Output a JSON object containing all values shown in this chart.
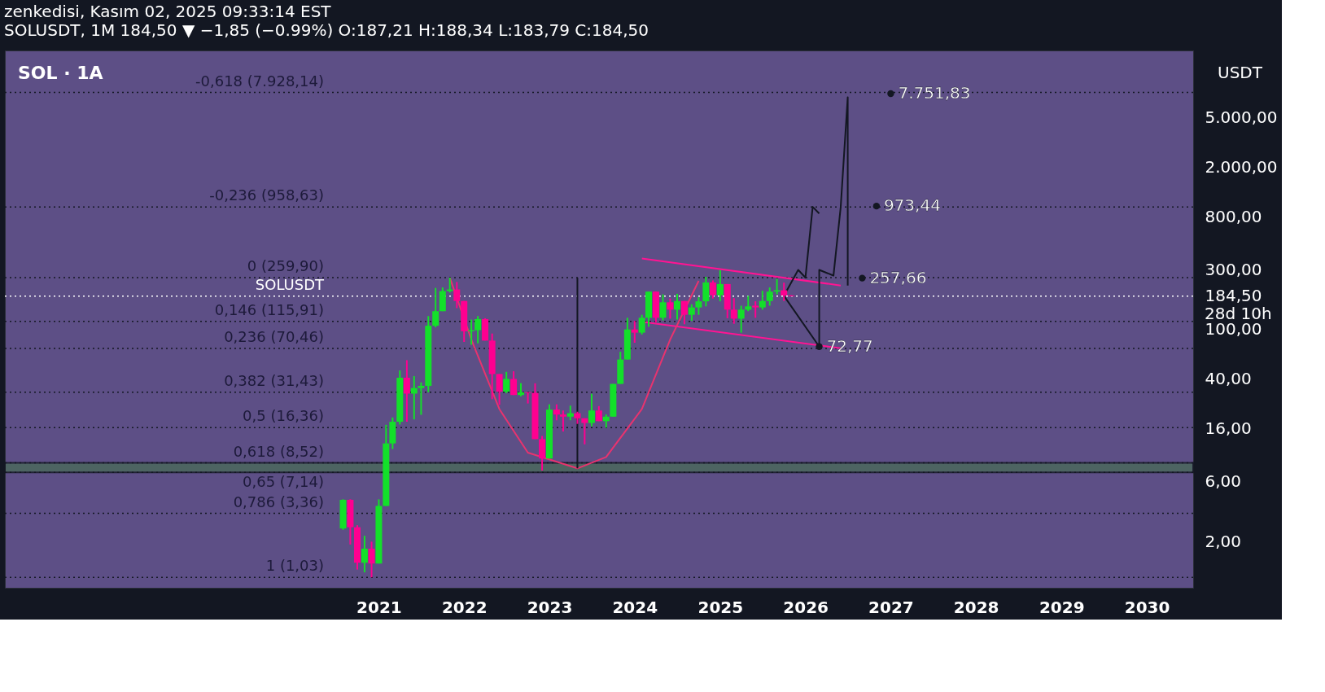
{
  "chart_data": {
    "type": "candlestick",
    "title": "zenkedisi, Kasım 02, 2025 09:33:14 EST",
    "subtitle": "SOLUSDT, 1M  184,50 ▼ −1,85 (−0.99%)  O:187,21  H:188,34  L:183,79  C:184,50",
    "x": [
      "2020-08",
      "2020-09",
      "2020-10",
      "2020-11",
      "2020-12",
      "2021-01",
      "2021-02",
      "2021-03",
      "2021-04",
      "2021-05",
      "2021-06",
      "2021-07",
      "2021-08",
      "2021-09",
      "2021-10",
      "2021-11",
      "2021-12",
      "2022-01",
      "2022-02",
      "2022-03",
      "2022-04",
      "2022-05",
      "2022-06",
      "2022-07",
      "2022-08",
      "2022-09",
      "2022-10",
      "2022-11",
      "2022-12",
      "2023-01",
      "2023-02",
      "2023-03",
      "2023-04",
      "2023-05",
      "2023-06",
      "2023-07",
      "2023-08",
      "2023-09",
      "2023-10",
      "2023-11",
      "2023-12",
      "2024-01",
      "2024-02",
      "2024-03",
      "2024-04",
      "2024-05",
      "2024-06",
      "2024-07",
      "2024-08",
      "2024-09",
      "2024-10",
      "2024-11",
      "2024-12",
      "2025-01",
      "2025-02",
      "2025-03",
      "2025-04",
      "2025-05",
      "2025-06",
      "2025-07",
      "2025-08",
      "2025-09",
      "2025-10",
      "2025-11"
    ],
    "ohlc": [
      [
        2.54,
        4.35,
        2.48,
        4.31
      ],
      [
        4.31,
        4.35,
        1.89,
        2.6
      ],
      [
        2.6,
        2.7,
        1.19,
        1.35
      ],
      [
        1.35,
        2.22,
        1.13,
        1.75
      ],
      [
        1.75,
        1.99,
        1.03,
        1.33
      ],
      [
        1.33,
        4.35,
        1.33,
        3.85
      ],
      [
        3.85,
        17.2,
        3.85,
        12.2
      ],
      [
        12.2,
        19.7,
        11.0,
        18.2
      ],
      [
        18.2,
        46.9,
        17.3,
        41.0
      ],
      [
        41.0,
        56.7,
        18.2,
        30.6
      ],
      [
        30.6,
        42.3,
        19.0,
        33.9
      ],
      [
        33.9,
        37.6,
        20.7,
        35.3
      ],
      [
        35.3,
        128,
        31.4,
        107
      ],
      [
        107,
        215,
        104,
        140
      ],
      [
        140,
        217,
        140,
        203
      ],
      [
        203,
        259.9,
        198,
        209
      ],
      [
        209,
        240,
        148,
        169
      ],
      [
        169,
        169,
        79.4,
        96.6
      ],
      [
        96.6,
        120,
        75.4,
        98.6
      ],
      [
        98.6,
        128,
        77.4,
        121
      ],
      [
        121,
        123,
        81.4,
        81.4
      ],
      [
        81.4,
        92.7,
        27.6,
        43.9
      ],
      [
        43.9,
        43.9,
        24.9,
        31.7
      ],
      [
        31.7,
        45.7,
        30.9,
        40.1
      ],
      [
        40.1,
        46.2,
        29.8,
        29.8
      ],
      [
        29.8,
        37.1,
        29.1,
        31.4
      ],
      [
        31.4,
        31.4,
        25.5,
        31.0
      ],
      [
        31.0,
        37,
        13.2,
        13.2
      ],
      [
        13.2,
        14.0,
        7.4,
        9.24
      ],
      [
        9.24,
        25.1,
        9.24,
        22.8
      ],
      [
        22.8,
        25.1,
        18.7,
        20.8
      ],
      [
        20.8,
        22.4,
        15.2,
        20.0
      ],
      [
        20.0,
        24.5,
        18.7,
        21.3
      ],
      [
        21.3,
        21.9,
        17.5,
        19.4
      ],
      [
        19.4,
        19.4,
        12.0,
        17.8
      ],
      [
        17.8,
        30.5,
        16.7,
        22.4
      ],
      [
        22.4,
        24.3,
        18.4,
        18.4
      ],
      [
        18.4,
        20.8,
        16.3,
        20.0
      ],
      [
        20.0,
        36.6,
        20.0,
        36.6
      ],
      [
        36.6,
        66.2,
        36.6,
        57.4
      ],
      [
        57.4,
        124,
        57.4,
        100
      ],
      [
        100,
        117,
        78.2,
        94.2
      ],
      [
        94.2,
        131,
        91.2,
        124
      ],
      [
        124,
        201,
        105,
        201
      ],
      [
        201,
        201,
        114,
        124
      ],
      [
        124,
        191,
        118,
        165
      ],
      [
        165,
        177,
        122,
        144
      ],
      [
        144,
        193,
        120,
        169
      ],
      [
        169,
        169,
        110,
        131
      ],
      [
        131,
        159,
        117,
        150
      ],
      [
        150,
        181,
        131,
        168
      ],
      [
        168,
        264,
        153,
        238
      ],
      [
        238,
        247,
        177,
        188
      ],
      [
        188,
        298,
        168,
        231
      ],
      [
        231,
        231,
        123,
        144
      ],
      [
        144,
        178,
        111,
        122
      ],
      [
        122,
        155,
        94.2,
        144
      ],
      [
        144,
        186,
        140,
        153
      ],
      [
        155,
        168,
        124,
        150
      ],
      [
        150,
        204,
        144,
        169
      ],
      [
        169,
        217,
        155,
        201
      ],
      [
        201,
        254,
        191,
        206
      ],
      [
        206,
        237,
        169,
        187.21
      ],
      [
        187.21,
        188.34,
        183.79,
        184.5
      ]
    ],
    "colors": [
      "#13e02a",
      "#ff0090",
      "#ff0090",
      "#13e02a",
      "#ff0090",
      "#13e02a",
      "#13e02a",
      "#13e02a",
      "#13e02a",
      "#ff0090",
      "#13e02a",
      "#13e02a",
      "#13e02a",
      "#13e02a",
      "#13e02a",
      "#13e02a",
      "#ff0090",
      "#ff0090",
      "#13e02a",
      "#13e02a",
      "#ff0090",
      "#ff0090",
      "#ff0090",
      "#13e02a",
      "#ff0090",
      "#13e02a",
      "#ff0090",
      "#ff0090",
      "#ff0090",
      "#13e02a",
      "#ff0090",
      "#ff0090",
      "#13e02a",
      "#ff0090",
      "#ff0090",
      "#13e02a",
      "#ff0090",
      "#13e02a",
      "#13e02a",
      "#13e02a",
      "#13e02a",
      "#ff0090",
      "#13e02a",
      "#13e02a",
      "#ff0090",
      "#13e02a",
      "#ff0090",
      "#13e02a",
      "#ff0090",
      "#13e02a",
      "#13e02a",
      "#13e02a",
      "#ff0090",
      "#13e02a",
      "#ff0090",
      "#ff0090",
      "#13e02a",
      "#13e02a",
      "#ff0090",
      "#13e02a",
      "#13e02a",
      "#13e02a",
      "#ff0090",
      "#ff0090"
    ],
    "series": [
      {
        "type": "line",
        "color": "#ff1493",
        "x": [
          "2024-02",
          "2026-06"
        ],
        "values": [
          370,
          225
        ]
      },
      {
        "type": "line",
        "color": "#ff1493",
        "x": [
          "2024-02",
          "2026-06"
        ],
        "values": [
          115,
          70.7
        ]
      },
      {
        "type": "line",
        "color": "#e8336f",
        "x": [
          "2021-11",
          "2022-02",
          "2022-06",
          "2022-10",
          "2023-05",
          "2023-09",
          "2024-02",
          "2024-06",
          "2024-10"
        ],
        "values": [
          259.9,
          83,
          23,
          10.3,
          7.7,
          9.5,
          23,
          83,
          245
        ]
      },
      {
        "type": "line",
        "color": "#131722",
        "x": [
          "2023-05",
          "2023-05"
        ],
        "values": [
          7.7,
          259.9
        ]
      },
      {
        "type": "line",
        "color": "#131722",
        "x": [
          "2025-10",
          "2025-12",
          "2026-01",
          "2026-02",
          "2026-03"
        ],
        "values": [
          186,
          300,
          260,
          960,
          850
        ]
      },
      {
        "type": "line",
        "color": "#131722",
        "x": [
          "2025-10",
          "2026-03",
          "2026-03",
          "2026-05",
          "2026-06",
          "2026-07",
          "2026-07"
        ],
        "values": [
          186,
          72.77,
          300,
          270,
          960,
          7250,
          225
        ]
      },
      {
        "type": "scatter",
        "color": "#131722",
        "marker": "circle",
        "x": [
          "2027-01",
          "2026-11",
          "2026-09",
          "2026-03"
        ],
        "values": [
          7751.83,
          973.44,
          257.66,
          72.77
        ]
      }
    ],
    "bands": [
      {
        "axis": "y",
        "from": 7.14,
        "to": 8.52,
        "color": "#4a6a5a"
      }
    ],
    "ref_lines": [
      {
        "axis": "y",
        "value": 7928.14,
        "label": "-0,618 (7.928,14)",
        "color": "#131722",
        "line_style": "dotted"
      },
      {
        "axis": "y",
        "value": 958.63,
        "label": "-0,236 (958,63)",
        "color": "#131722",
        "line_style": "dotted"
      },
      {
        "axis": "y",
        "value": 259.9,
        "label": "0 (259,90)",
        "color": "#131722",
        "line_style": "dotted"
      },
      {
        "axis": "y",
        "value": 115.91,
        "label": "0,146 (115,91)",
        "color": "#131722",
        "line_style": "dotted"
      },
      {
        "axis": "y",
        "value": 70.46,
        "label": "0,236 (70,46)",
        "color": "#131722",
        "line_style": "dotted"
      },
      {
        "axis": "y",
        "value": 31.43,
        "label": "0,382 (31,43)",
        "color": "#131722",
        "line_style": "dotted"
      },
      {
        "axis": "y",
        "value": 16.36,
        "label": "0,5 (16,36)",
        "color": "#131722",
        "line_style": "dotted"
      },
      {
        "axis": "y",
        "value": 8.52,
        "label": "0,618 (8,52)",
        "color": "#131722",
        "line_style": "dotted"
      },
      {
        "axis": "y",
        "value": 7.14,
        "label": "0,65 (7,14)",
        "color": "#131722",
        "line_style": "dotted"
      },
      {
        "axis": "y",
        "value": 3.36,
        "label": "0,786 (3,36)",
        "color": "#131722",
        "line_style": "dotted"
      },
      {
        "axis": "y",
        "value": 1.03,
        "label": "1 (1,03)",
        "color": "#131722",
        "line_style": "dotted"
      },
      {
        "axis": "y",
        "value": 184.5,
        "label": "SOLUSDT",
        "color": "#ffffff",
        "line_style": "dotted"
      }
    ],
    "annotations": [
      "SOL · 1A",
      "USDT",
      {
        "text": "7.751,83",
        "x": "2027-01",
        "y": 7751.83
      },
      {
        "text": "973,44",
        "x": "2026-11",
        "y": 973.44
      },
      {
        "text": "257,66",
        "x": "2026-09",
        "y": 257.66
      },
      {
        "text": "72,77",
        "x": "2026-03",
        "y": 72.77
      },
      "28d 10h"
    ],
    "xlim": [
      "2016-09",
      "2030-07"
    ],
    "xticks": [
      "2021",
      "2022",
      "2023",
      "2024",
      "2025",
      "2026",
      "2027",
      "2028",
      "2029",
      "2030"
    ],
    "ylim": [
      0.85,
      17200
    ],
    "yticks": [
      {
        "value": 2,
        "label": "2,00"
      },
      {
        "value": 6,
        "label": "6,00"
      },
      {
        "value": 16,
        "label": "16,00"
      },
      {
        "value": 40,
        "label": "40,00"
      },
      {
        "value": 100,
        "label": "100,00"
      },
      {
        "value": 184.5,
        "label": "184,50"
      },
      {
        "value": 300,
        "label": "300,00"
      },
      {
        "value": 800,
        "label": "800,00"
      },
      {
        "value": 2000,
        "label": "2.000,00"
      },
      {
        "value": 5000,
        "label": "5.000,00"
      }
    ],
    "log": true,
    "grid": false
  }
}
